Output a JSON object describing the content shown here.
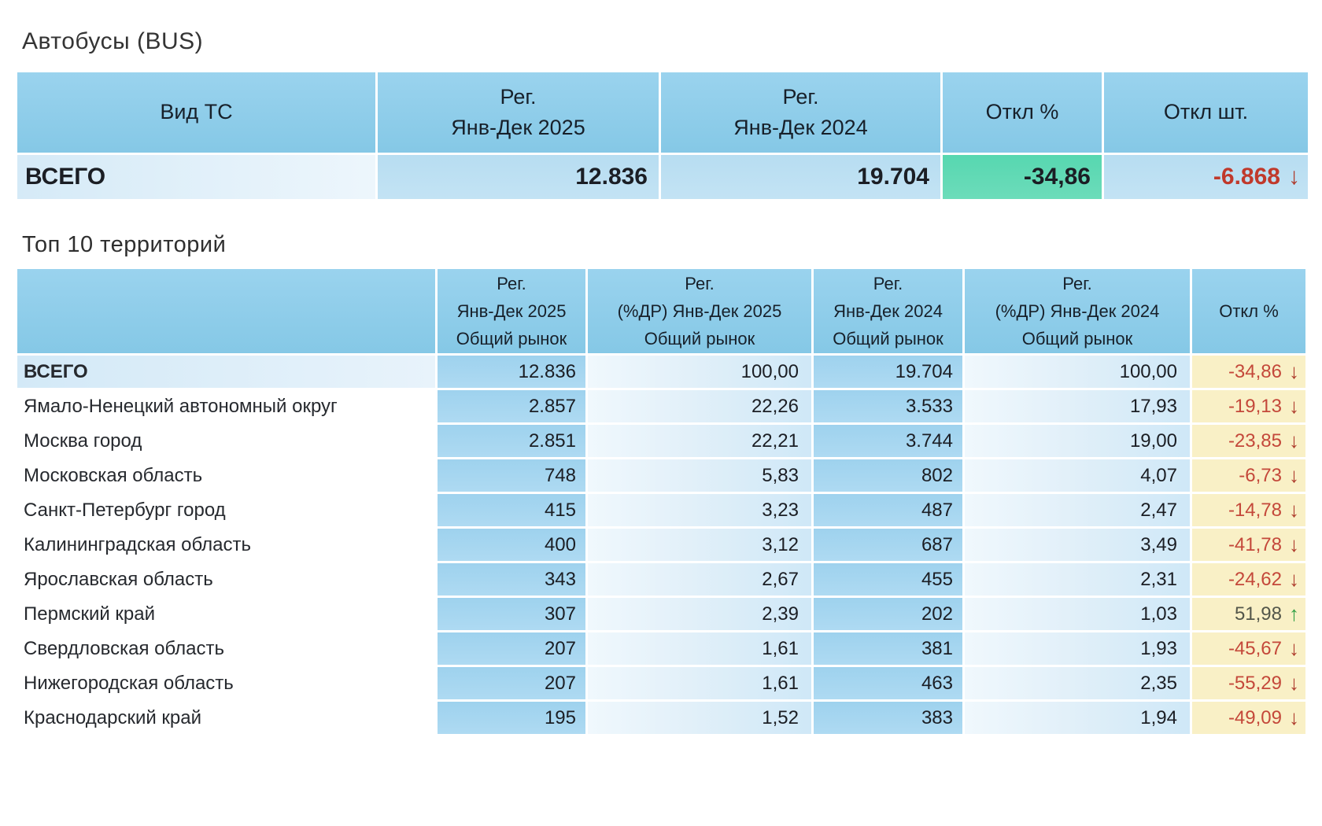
{
  "colors": {
    "header-blue-1": "#9ad3ee",
    "header-blue-2": "#85c8e6",
    "teal": "#5cd9b3",
    "yellow": "#f9f0c6",
    "red": "#c0392b",
    "arrow-red": "#ae3b2c",
    "green": "#2f9e44"
  },
  "icons": {
    "down_arrow": "↓",
    "up_arrow": "↑"
  },
  "section_bus": {
    "title": "Автобусы (BUS)",
    "table": {
      "headers": [
        {
          "key": "vehicle-type",
          "lines": [
            "Вид ТС"
          ]
        },
        {
          "key": "reg-2025",
          "lines": [
            "Рег.",
            "Янв-Дек 2025"
          ]
        },
        {
          "key": "reg-2024",
          "lines": [
            "Рег.",
            "Янв-Дек 2024"
          ]
        },
        {
          "key": "dev-pct",
          "lines": [
            "Откл %"
          ]
        },
        {
          "key": "dev-units",
          "lines": [
            "Откл шт."
          ]
        }
      ],
      "row": {
        "name": "ВСЕГО",
        "reg_2025": "12.836",
        "reg_2024": "19.704",
        "dev_pct": "-34,86",
        "dev_units": "-6.868",
        "dev_units_dir": "down"
      }
    }
  },
  "section_top10": {
    "title": "Топ 10 территорий",
    "table": {
      "headers": [
        {
          "key": "territory",
          "lines": []
        },
        {
          "key": "reg-2025",
          "lines": [
            "Рег.",
            "Янв-Дек 2025",
            "Общий рынок"
          ]
        },
        {
          "key": "share-2025",
          "lines": [
            "Рег.",
            "(%ДР) Янв-Дек 2025",
            "Общий рынок"
          ]
        },
        {
          "key": "reg-2024",
          "lines": [
            "Рег.",
            "Янв-Дек 2024",
            "Общий рынок"
          ]
        },
        {
          "key": "share-2024",
          "lines": [
            "Рег.",
            "(%ДР) Янв-Дек 2024",
            "Общий рынок"
          ]
        },
        {
          "key": "dev-pct",
          "lines": [
            "Откл %"
          ]
        }
      ],
      "rows": [
        {
          "name": "ВСЕГО",
          "reg_2025": "12.836",
          "share_2025": "100,00",
          "reg_2024": "19.704",
          "share_2024": "100,00",
          "dev_pct": "-34,86",
          "dev_dir": "down",
          "total": true
        },
        {
          "name": "Ямало-Ненецкий автономный округ",
          "reg_2025": "2.857",
          "share_2025": "22,26",
          "reg_2024": "3.533",
          "share_2024": "17,93",
          "dev_pct": "-19,13",
          "dev_dir": "down",
          "total": false
        },
        {
          "name": "Москва город",
          "reg_2025": "2.851",
          "share_2025": "22,21",
          "reg_2024": "3.744",
          "share_2024": "19,00",
          "dev_pct": "-23,85",
          "dev_dir": "down",
          "total": false
        },
        {
          "name": "Московская область",
          "reg_2025": "748",
          "share_2025": "5,83",
          "reg_2024": "802",
          "share_2024": "4,07",
          "dev_pct": "-6,73",
          "dev_dir": "down",
          "total": false
        },
        {
          "name": "Санкт-Петербург город",
          "reg_2025": "415",
          "share_2025": "3,23",
          "reg_2024": "487",
          "share_2024": "2,47",
          "dev_pct": "-14,78",
          "dev_dir": "down",
          "total": false
        },
        {
          "name": "Калининградская область",
          "reg_2025": "400",
          "share_2025": "3,12",
          "reg_2024": "687",
          "share_2024": "3,49",
          "dev_pct": "-41,78",
          "dev_dir": "down",
          "total": false
        },
        {
          "name": "Ярославская область",
          "reg_2025": "343",
          "share_2025": "2,67",
          "reg_2024": "455",
          "share_2024": "2,31",
          "dev_pct": "-24,62",
          "dev_dir": "down",
          "total": false
        },
        {
          "name": "Пермский край",
          "reg_2025": "307",
          "share_2025": "2,39",
          "reg_2024": "202",
          "share_2024": "1,03",
          "dev_pct": "51,98",
          "dev_dir": "up",
          "total": false
        },
        {
          "name": "Свердловская область",
          "reg_2025": "207",
          "share_2025": "1,61",
          "reg_2024": "381",
          "share_2024": "1,93",
          "dev_pct": "-45,67",
          "dev_dir": "down",
          "total": false
        },
        {
          "name": "Нижегородская область",
          "reg_2025": "207",
          "share_2025": "1,61",
          "reg_2024": "463",
          "share_2024": "2,35",
          "dev_pct": "-55,29",
          "dev_dir": "down",
          "total": false
        },
        {
          "name": "Краснодарский край",
          "reg_2025": "195",
          "share_2025": "1,52",
          "reg_2024": "383",
          "share_2024": "1,94",
          "dev_pct": "-49,09",
          "dev_dir": "down",
          "total": false
        }
      ]
    }
  }
}
